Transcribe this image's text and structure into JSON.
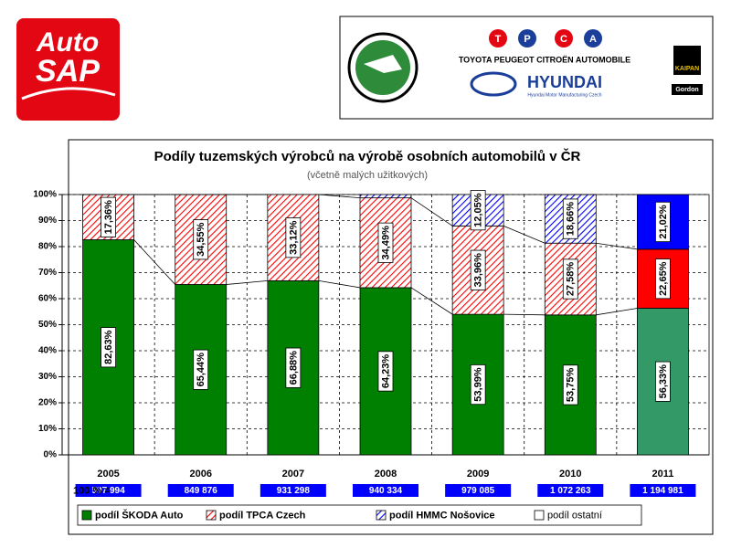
{
  "header": {
    "logo_top": "Auto",
    "logo_bottom": "SAP",
    "partners": {
      "tpca_letters": [
        "T",
        "P",
        "C",
        "A"
      ],
      "tpca_name": "TOYOTA PEUGEOT CITROËN AUTOMOBILE",
      "hyundai": "HYUNDAI",
      "hyundai_sub": "Hyundai Motor Manufacturing Czech",
      "kaipan": "KAIPAN",
      "gordon": "Gordon"
    }
  },
  "chart_data": {
    "type": "stacked_bar",
    "title": "Podíly tuzemských výrobců na výrobě osobních automobilů v ČR",
    "subtitle": "(včetně malých užitkových)",
    "categories": [
      "2005",
      "2006",
      "2007",
      "2008",
      "2009",
      "2010",
      "2011"
    ],
    "series": [
      {
        "name": "podíl ŠKODA Auto",
        "color": "#008000",
        "solid_color": "#339966",
        "pattern": "solid",
        "values": [
          82.63,
          65.44,
          66.88,
          64.23,
          53.99,
          53.75,
          56.33
        ],
        "value_labels": [
          "82,63%",
          "65,44%",
          "66,88%",
          "64,23%",
          "53,99%",
          "53,75%",
          "56,33%"
        ]
      },
      {
        "name": "podíl TPCA Czech",
        "color": "#ff0000",
        "solid_color": "#ff0000",
        "pattern": "hatch",
        "values": [
          17.36,
          34.55,
          33.12,
          34.49,
          33.96,
          27.58,
          22.65
        ],
        "value_labels": [
          "17,36%",
          "34,55%",
          "33,12%",
          "34,49%",
          "33,96%",
          "27,58%",
          "22,65%"
        ]
      },
      {
        "name": "podíl HMMC Nošovice",
        "color": "#0000ff",
        "solid_color": "#0000ff",
        "pattern": "hatch",
        "values": [
          0,
          0,
          0,
          1.28,
          12.05,
          18.66,
          21.02
        ],
        "value_labels": [
          null,
          null,
          null,
          null,
          "12,05%",
          "18,66%",
          "21,02%"
        ]
      },
      {
        "name": "podíl ostatní",
        "color": "#ffffff",
        "solid_color": "#ffffff",
        "pattern": "solid",
        "values": [
          0.01,
          0.01,
          0,
          0,
          0,
          0.01,
          0
        ],
        "value_labels": [
          null,
          null,
          null,
          null,
          null,
          null,
          null
        ]
      }
    ],
    "solid_categories": [
      "2011"
    ],
    "series_lines": true,
    "ylim": [
      0,
      100
    ],
    "yticks": [
      {
        "value": 0,
        "label": "0%"
      },
      {
        "value": 10,
        "label": "10%"
      },
      {
        "value": 20,
        "label": "20%"
      },
      {
        "value": 30,
        "label": "30%"
      },
      {
        "value": 40,
        "label": "40%"
      },
      {
        "value": 50,
        "label": "50%"
      },
      {
        "value": 60,
        "label": "60%"
      },
      {
        "value": 70,
        "label": "70%"
      },
      {
        "value": 80,
        "label": "80%"
      },
      {
        "value": 90,
        "label": "90%"
      },
      {
        "value": 100,
        "label": "100%"
      }
    ],
    "grid": true,
    "totals": {
      "label": "100 % =",
      "color": "#0000ff",
      "values": [
        597994,
        849876,
        931298,
        940334,
        979085,
        1072263,
        1194981
      ],
      "value_labels": [
        "597 994",
        "849 876",
        "931 298",
        "940 334",
        "979 085",
        "1 072 263",
        "1 194 981"
      ]
    },
    "legend": "bottom"
  }
}
